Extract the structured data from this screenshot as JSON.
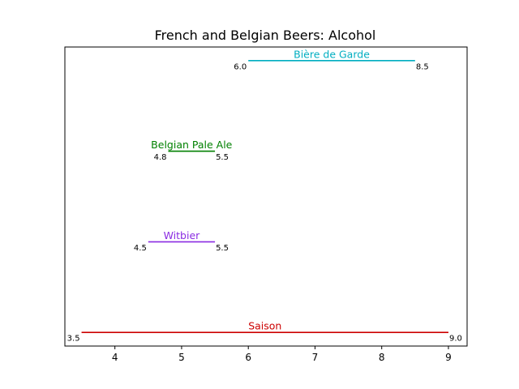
{
  "chart_data": {
    "type": "range",
    "title": "French and Belgian Beers: Alcohol",
    "xlabel": "",
    "ylabel": "",
    "xlim": [
      3.25,
      9.28
    ],
    "ylim": [
      -0.15,
      3.15
    ],
    "xticks": [
      4,
      5,
      6,
      7,
      8,
      9
    ],
    "grid": false,
    "series": [
      {
        "name": "Saison",
        "low": 3.5,
        "high": 9.0,
        "low_label": "3.5",
        "high_label": "9.0",
        "color": "#cc0000"
      },
      {
        "name": "Witbier",
        "low": 4.5,
        "high": 5.5,
        "low_label": "4.5",
        "high_label": "5.5",
        "color": "#8a2be2"
      },
      {
        "name": "Belgian Pale Ale",
        "low": 4.8,
        "high": 5.5,
        "low_label": "4.8",
        "high_label": "5.5",
        "color": "#008000"
      },
      {
        "name": "Bière de Garde",
        "low": 6.0,
        "high": 8.5,
        "low_label": "6.0",
        "high_label": "8.5",
        "color": "#00aec1"
      }
    ]
  }
}
